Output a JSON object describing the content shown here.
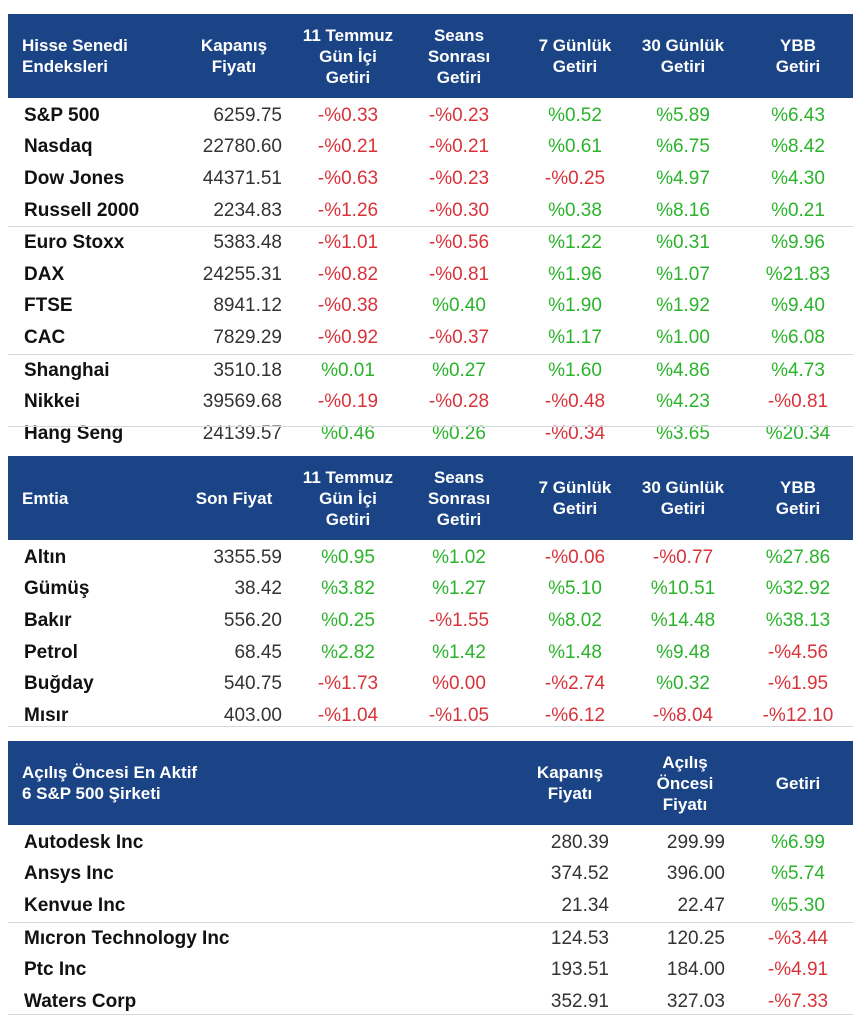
{
  "indices": {
    "headers": [
      "Hisse Senedi\nEndeksleri",
      "Kapanış\nFiyatı",
      "11 Temmuz\nGün İçi\nGetiri",
      "Seans\nSonrası\nGetiri",
      "7 Günlük\nGetiri",
      "30 Günlük\nGetiri",
      "YBB\nGetiri"
    ],
    "rows": [
      [
        "S&P 500",
        "6259.75",
        "-%0.33",
        "-%0.23",
        "%0.52",
        "%5.89",
        "%6.43"
      ],
      [
        "Nasdaq",
        "22780.60",
        "-%0.21",
        "-%0.21",
        "%0.61",
        "%6.75",
        "%8.42"
      ],
      [
        "Dow Jones",
        "44371.51",
        "-%0.63",
        "-%0.23",
        "-%0.25",
        "%4.97",
        "%4.30"
      ],
      [
        "Russell 2000",
        "2234.83",
        "-%1.26",
        "-%0.30",
        "%0.38",
        "%8.16",
        "%0.21"
      ],
      [
        "Euro Stoxx",
        "5383.48",
        "-%1.01",
        "-%0.56",
        "%1.22",
        "%0.31",
        "%9.96"
      ],
      [
        "DAX",
        "24255.31",
        "-%0.82",
        "-%0.81",
        "%1.96",
        "%1.07",
        "%21.83"
      ],
      [
        "FTSE",
        "8941.12",
        "-%0.38",
        "%0.40",
        "%1.90",
        "%1.92",
        "%9.40"
      ],
      [
        "CAC",
        "7829.29",
        "-%0.92",
        "-%0.37",
        "%1.17",
        "%1.00",
        "%6.08"
      ],
      [
        "Shanghai",
        "3510.18",
        "%0.01",
        "%0.27",
        "%1.60",
        "%4.86",
        "%4.73"
      ],
      [
        "Nikkei",
        "39569.68",
        "-%0.19",
        "-%0.28",
        "-%0.48",
        "%4.23",
        "-%0.81"
      ],
      [
        "Hang Seng",
        "24139.57",
        "%0.46",
        "%0.26",
        "-%0.34",
        "%3.65",
        "%20.34"
      ]
    ]
  },
  "commodities": {
    "headers": [
      "Emtia",
      "Son Fiyat",
      "11 Temmuz\nGün İçi\nGetiri",
      "Seans\nSonrası\nGetiri",
      "7 Günlük\nGetiri",
      "30 Günlük\nGetiri",
      "YBB\nGetiri"
    ],
    "rows": [
      [
        "Altın",
        "3355.59",
        "%0.95",
        "%1.02",
        "-%0.06",
        "-%0.77",
        "%27.86"
      ],
      [
        "Gümüş",
        "38.42",
        "%3.82",
        "%1.27",
        "%5.10",
        "%10.51",
        "%32.92"
      ],
      [
        "Bakır",
        "556.20",
        "%0.25",
        "-%1.55",
        "%8.02",
        "%14.48",
        "%38.13"
      ],
      [
        "Petrol",
        "68.45",
        "%2.82",
        "%1.42",
        "%1.48",
        "%9.48",
        "-%4.56"
      ],
      [
        "Buğday",
        "540.75",
        "-%1.73",
        "%0.00",
        "-%2.74",
        "%0.32",
        "-%1.95"
      ],
      [
        "Mısır",
        "403.00",
        "-%1.04",
        "-%1.05",
        "-%6.12",
        "-%8.04",
        "-%12.10"
      ]
    ]
  },
  "premarket": {
    "headers": [
      "Açılış Öncesi En Aktif\n6 S&P 500 Şirketi",
      "Kapanış\nFiyatı",
      "Açılış\nÖncesi\nFiyatı",
      "Getiri"
    ],
    "rows": [
      [
        "Autodesk Inc",
        "280.39",
        "299.99",
        "%6.99"
      ],
      [
        "Ansys Inc",
        "374.52",
        "396.00",
        "%5.74"
      ],
      [
        "Kenvue Inc",
        "21.34",
        "22.47",
        "%5.30"
      ],
      [
        "Mıcron Technology Inc",
        "124.53",
        "120.25",
        "-%3.44"
      ],
      [
        "Ptc Inc",
        "193.51",
        "184.00",
        "-%4.91"
      ],
      [
        "Waters Corp",
        "352.91",
        "327.03",
        "-%7.33"
      ]
    ]
  },
  "colors": {
    "header_bg": "#1b4486",
    "positive": "#2bb32b",
    "negative": "#d8333a"
  }
}
